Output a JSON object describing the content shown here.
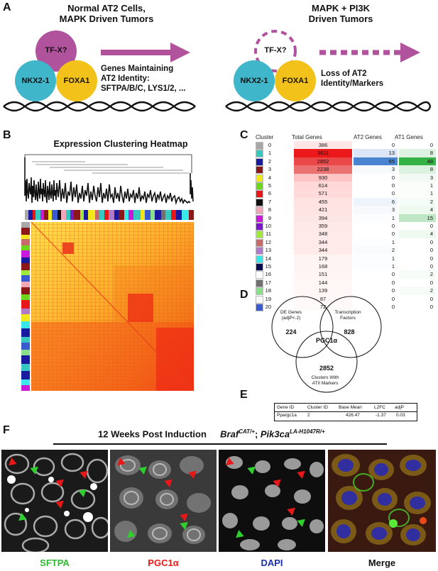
{
  "panels": {
    "a": "A",
    "b": "B",
    "c": "C",
    "d": "D",
    "e": "E",
    "f": "F"
  },
  "panel_a": {
    "left_title": "Normal AT2 Cells,\nMAPK Driven Tumors",
    "right_title": "MAPK + PI3K\nDriven Tumors",
    "tfx": "TF-X?",
    "nkx": "NKX2-1",
    "foxa": "FOXA1",
    "left_note_1": "Genes Maintaining",
    "left_note_2": "AT2 Identity:",
    "left_note_3": "SFTPA/B/C, LYS1/2, ...",
    "right_note_1": "Loss of AT2",
    "right_note_2": "Identity/Markers",
    "colors": {
      "tfx": "#b0529c",
      "nkx": "#3fb6c9",
      "foxa": "#f2c21b",
      "arrow": "#b0529c"
    }
  },
  "panel_b": {
    "title": "Expression Clustering Heatmap"
  },
  "panel_c": {
    "headers": [
      "Cluster",
      "Total Genes",
      "AT2 Genes",
      "AT1 Genes"
    ],
    "rows": [
      {
        "cluster": "0",
        "color": "#a8a8a8",
        "total": "386",
        "at2": "0",
        "at1": "0"
      },
      {
        "cluster": "1",
        "color": "#35c8c0",
        "total": "3611",
        "at2": "13",
        "at1": "8"
      },
      {
        "cluster": "2",
        "color": "#1a1aa0",
        "total": "2852",
        "at2": "65",
        "at1": "48"
      },
      {
        "cluster": "3",
        "color": "#8a1818",
        "total": "2238",
        "at2": "3",
        "at1": "8"
      },
      {
        "cluster": "4",
        "color": "#f0e81a",
        "total": "930",
        "at2": "0",
        "at1": "3"
      },
      {
        "cluster": "5",
        "color": "#6cd61a",
        "total": "614",
        "at2": "0",
        "at1": "1"
      },
      {
        "cluster": "6",
        "color": "#e81818",
        "total": "571",
        "at2": "0",
        "at1": "1"
      },
      {
        "cluster": "7",
        "color": "#111111",
        "total": "455",
        "at2": "6",
        "at1": "2"
      },
      {
        "cluster": "8",
        "color": "#f0a8b8",
        "total": "421",
        "at2": "3",
        "at1": "4"
      },
      {
        "cluster": "9",
        "color": "#c81ad8",
        "total": "394",
        "at2": "1",
        "at1": "15"
      },
      {
        "cluster": "10",
        "color": "#7a18c8",
        "total": "359",
        "at2": "0",
        "at1": "0"
      },
      {
        "cluster": "11",
        "color": "#a0e83a",
        "total": "348",
        "at2": "0",
        "at1": "4"
      },
      {
        "cluster": "12",
        "color": "#c86a6a",
        "total": "344",
        "at2": "1",
        "at1": "0"
      },
      {
        "cluster": "13",
        "color": "#b07ac8",
        "total": "344",
        "at2": "2",
        "at1": "0"
      },
      {
        "cluster": "14",
        "color": "#3ae8e8",
        "total": "179",
        "at2": "1",
        "at1": "0"
      },
      {
        "cluster": "15",
        "color": "#0a0a50",
        "total": "168",
        "at2": "1",
        "at1": "0"
      },
      {
        "cluster": "16",
        "color": "#ffffff",
        "total": "151",
        "at2": "0",
        "at1": "2"
      },
      {
        "cluster": "17",
        "color": "#707070",
        "total": "144",
        "at2": "0",
        "at1": "0"
      },
      {
        "cluster": "18",
        "color": "#8ae08a",
        "total": "139",
        "at2": "0",
        "at1": "2"
      },
      {
        "cluster": "19",
        "color": "#f8f8f8",
        "total": "87",
        "at2": "0",
        "at1": "0"
      },
      {
        "cluster": "20",
        "color": "#3a5ad0",
        "total": "72",
        "at2": "0",
        "at1": "0"
      }
    ]
  },
  "panel_d": {
    "de_genes": "DE Genes\n(adjP<.2)",
    "tf": "Transcription\nFactors",
    "atii": "Clusters With\nATII Markers",
    "n_de": "224",
    "n_tf": "828",
    "n_atii": "2852",
    "center": "PGC1α"
  },
  "panel_e": {
    "headers": [
      "Gene ID",
      "Cluster ID",
      "Base Mean",
      "L2FC",
      "adjP"
    ],
    "row": [
      "Ppargc1a",
      "2",
      "426.47",
      "-1.37",
      "0.03"
    ]
  },
  "panel_f": {
    "caption": "12 Weeks Post Induction",
    "genotype_1": "Braf",
    "genotype_1_sup": "CAT/+",
    "genotype_sep": "; ",
    "genotype_2": "Pik3ca",
    "genotype_2_sup": "LA-H1047R/+",
    "labels": [
      {
        "text": "SFTPA",
        "color": "#2fb82f"
      },
      {
        "text": "PGC1α",
        "color": "#e81818"
      },
      {
        "text": "DAPI",
        "color": "#1a2fa8"
      },
      {
        "text": "Merge",
        "color": "#111111"
      }
    ]
  }
}
